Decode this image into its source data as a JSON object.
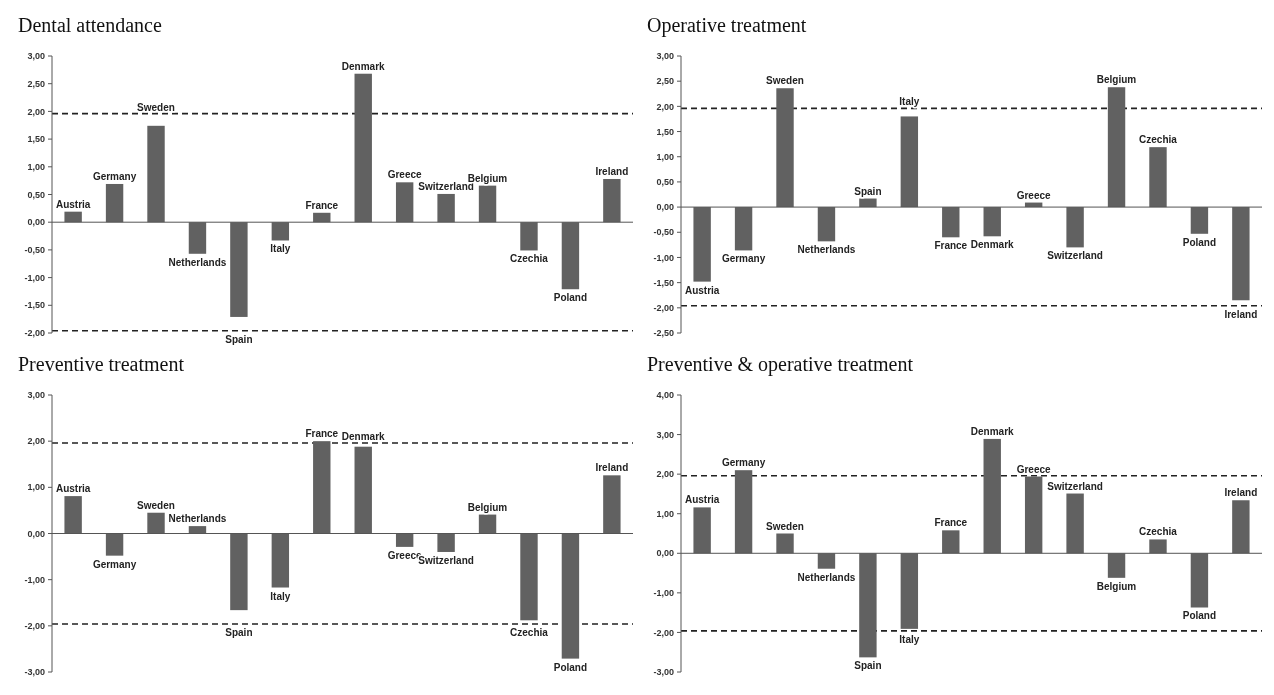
{
  "chart_data": [
    {
      "type": "bar",
      "title": "Dental attendance",
      "categories": [
        "Austria",
        "Germany",
        "Sweden",
        "Netherlands",
        "Spain",
        "Italy",
        "France",
        "Denmark",
        "Greece",
        "Switzerland",
        "Belgium",
        "Czechia",
        "Poland",
        "Ireland"
      ],
      "values": [
        0.19,
        0.69,
        1.74,
        -0.57,
        -1.71,
        -0.33,
        0.17,
        2.68,
        0.72,
        0.51,
        0.66,
        -0.51,
        -1.21,
        0.78
      ],
      "color": "#616161",
      "ylim": [
        -2,
        3
      ],
      "yticks": [
        {
          "value": -2,
          "label": "-2,00"
        },
        {
          "value": -1.5,
          "label": "-1,50"
        },
        {
          "value": -1,
          "label": "-1,00"
        },
        {
          "value": -0.5,
          "label": "-0,50"
        },
        {
          "value": 0,
          "label": "0,00"
        },
        {
          "value": 0.5,
          "label": "0,50"
        },
        {
          "value": 1,
          "label": "1,00"
        },
        {
          "value": 1.5,
          "label": "1,50"
        },
        {
          "value": 2,
          "label": "2,00"
        },
        {
          "value": 2.5,
          "label": "2,50"
        },
        {
          "value": 3,
          "label": "3,00"
        }
      ],
      "ref_lines": [
        {
          "axis": "y",
          "value": 1.96,
          "color": "#222222",
          "line_style": "dashed"
        },
        {
          "axis": "y",
          "value": -1.96,
          "color": "#222222",
          "line_style": "dashed"
        }
      ]
    },
    {
      "type": "bar",
      "title": "Operative treatment",
      "categories": [
        "Austria",
        "Germany",
        "Sweden",
        "Netherlands",
        "Spain",
        "Italy",
        "France",
        "Denmark",
        "Greece",
        "Switzerland",
        "Belgium",
        "Czechia",
        "Poland",
        "Ireland"
      ],
      "values": [
        -1.48,
        -0.86,
        2.36,
        -0.68,
        0.17,
        1.8,
        -0.6,
        -0.58,
        0.09,
        -0.8,
        2.38,
        1.19,
        -0.53,
        -1.85
      ],
      "color": "#616161",
      "ylim": [
        -2.5,
        3
      ],
      "yticks": [
        {
          "value": -2.5,
          "label": "-2,50"
        },
        {
          "value": -2,
          "label": "-2,00"
        },
        {
          "value": -1.5,
          "label": "-1,50"
        },
        {
          "value": -1,
          "label": "-1,00"
        },
        {
          "value": -0.5,
          "label": "-0,50"
        },
        {
          "value": 0,
          "label": "0,00"
        },
        {
          "value": 0.5,
          "label": "0,50"
        },
        {
          "value": 1,
          "label": "1,00"
        },
        {
          "value": 1.5,
          "label": "1,50"
        },
        {
          "value": 2,
          "label": "2,00"
        },
        {
          "value": 2.5,
          "label": "2,50"
        },
        {
          "value": 3,
          "label": "3,00"
        }
      ],
      "ref_lines": [
        {
          "axis": "y",
          "value": 1.96,
          "color": "#222222",
          "line_style": "dashed"
        },
        {
          "axis": "y",
          "value": -1.96,
          "color": "#222222",
          "line_style": "dashed"
        }
      ]
    },
    {
      "type": "bar",
      "title": "Preventive treatment",
      "categories": [
        "Austria",
        "Germany",
        "Sweden",
        "Netherlands",
        "Spain",
        "Italy",
        "France",
        "Denmark",
        "Greece",
        "Switzerland",
        "Belgium",
        "Czechia",
        "Poland",
        "Ireland"
      ],
      "values": [
        0.81,
        -0.48,
        0.45,
        0.16,
        -1.66,
        -1.17,
        2.0,
        1.88,
        -0.29,
        -0.4,
        0.41,
        -1.88,
        -2.71,
        1.26
      ],
      "color": "#616161",
      "ylim": [
        -3,
        3
      ],
      "yticks": [
        {
          "value": -3,
          "label": "-3,00"
        },
        {
          "value": -2,
          "label": "-2,00"
        },
        {
          "value": -1,
          "label": "-1,00"
        },
        {
          "value": 0,
          "label": "0,00"
        },
        {
          "value": 1,
          "label": "1,00"
        },
        {
          "value": 2,
          "label": "2,00"
        },
        {
          "value": 3,
          "label": "3,00"
        }
      ],
      "ref_lines": [
        {
          "axis": "y",
          "value": 1.96,
          "color": "#222222",
          "line_style": "dashed"
        },
        {
          "axis": "y",
          "value": -1.96,
          "color": "#222222",
          "line_style": "dashed"
        }
      ]
    },
    {
      "type": "bar",
      "title": "Preventive & operative treatment",
      "categories": [
        "Austria",
        "Germany",
        "Sweden",
        "Netherlands",
        "Spain",
        "Italy",
        "France",
        "Denmark",
        "Greece",
        "Switzerland",
        "Belgium",
        "Czechia",
        "Poland",
        "Ireland"
      ],
      "values": [
        1.16,
        2.1,
        0.5,
        -0.39,
        -2.63,
        -1.91,
        0.58,
        2.89,
        1.94,
        1.51,
        -0.62,
        0.35,
        -1.37,
        1.34
      ],
      "color": "#616161",
      "ylim": [
        -3,
        4
      ],
      "yticks": [
        {
          "value": -3,
          "label": "-3,00"
        },
        {
          "value": -2,
          "label": "-2,00"
        },
        {
          "value": -1,
          "label": "-1,00"
        },
        {
          "value": 0,
          "label": "0,00"
        },
        {
          "value": 1,
          "label": "1,00"
        },
        {
          "value": 2,
          "label": "2,00"
        },
        {
          "value": 3,
          "label": "3,00"
        },
        {
          "value": 4,
          "label": "4,00"
        }
      ],
      "ref_lines": [
        {
          "axis": "y",
          "value": 1.96,
          "color": "#222222",
          "line_style": "dashed"
        },
        {
          "axis": "y",
          "value": -1.96,
          "color": "#222222",
          "line_style": "dashed"
        }
      ]
    }
  ]
}
